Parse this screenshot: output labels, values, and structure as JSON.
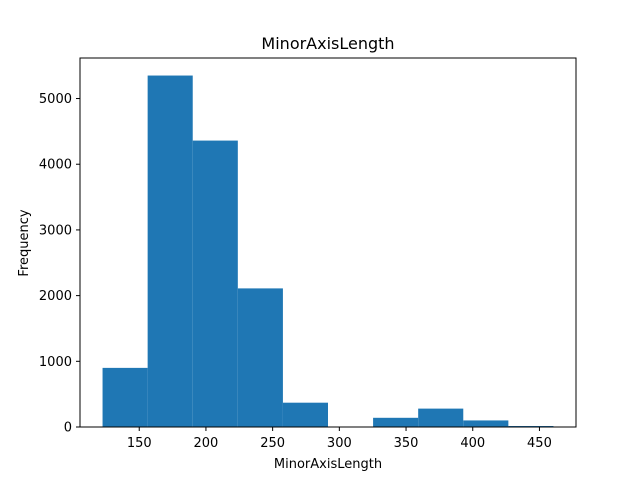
{
  "chart_data": {
    "type": "bar",
    "title": "MinorAxisLength",
    "xlabel": "MinorAxisLength",
    "ylabel": "Frequency",
    "bin_edges": [
      122.5,
      156.3,
      190.1,
      223.9,
      257.7,
      291.5,
      325.3,
      359.1,
      392.9,
      426.7,
      460.5
    ],
    "values": [
      900,
      5350,
      4360,
      2110,
      370,
      0,
      140,
      280,
      100,
      15
    ],
    "xlim": [
      105.6,
      477.4
    ],
    "ylim": [
      0,
      5617
    ],
    "xticks": [
      150,
      200,
      250,
      300,
      350,
      400,
      450
    ],
    "yticks": [
      0,
      1000,
      2000,
      3000,
      4000,
      5000
    ],
    "grid": false,
    "bar_color": "#1f77b4"
  }
}
